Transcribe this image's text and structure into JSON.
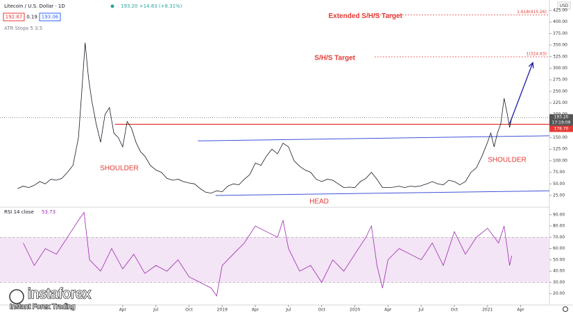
{
  "chart_data": [
    {
      "type": "line",
      "title": "Litecoin / U.S. Dollar · 1D",
      "quote": "193.20 +14.83 (+8.31%)",
      "ohlc_boxes": [
        "192.87",
        "0.19",
        "193.06"
      ],
      "indicator": "ATR Stops 5 3.5",
      "currency": "USD",
      "countdown": "17:19:09",
      "xlim": [
        -8.1,
        41.6
      ],
      "ylim": [
        1,
        447.5
      ],
      "yticks": [
        {
          "value": 25,
          "label": "25.00"
        },
        {
          "value": 50,
          "label": "50.00"
        },
        {
          "value": 75,
          "label": "75.00"
        },
        {
          "value": 100,
          "label": "100.00"
        },
        {
          "value": 125,
          "label": "125.00"
        },
        {
          "value": 150,
          "label": "150.00"
        },
        {
          "value": 175,
          "label": "175.00"
        },
        {
          "value": 200,
          "label": "200.00"
        },
        {
          "value": 225,
          "label": "225.00"
        },
        {
          "value": 250,
          "label": "250.00"
        },
        {
          "value": 275,
          "label": "275.00"
        },
        {
          "value": 300,
          "label": "300.00"
        },
        {
          "value": 325,
          "label": "325.00"
        },
        {
          "value": 350,
          "label": "350.00"
        },
        {
          "value": 375,
          "label": "375.00"
        },
        {
          "value": 400,
          "label": "400.00"
        },
        {
          "value": 425,
          "label": "425.00"
        }
      ],
      "x": [
        -6.5,
        -6,
        -5.5,
        -5,
        -4.5,
        -4,
        -3.5,
        -3,
        -2.5,
        -2,
        -1.5,
        -1,
        -0.7,
        -0.4,
        -0.1,
        0.2,
        0.6,
        1,
        1.4,
        1.8,
        2.2,
        2.6,
        3,
        3.4,
        3.8,
        4.2,
        4.6,
        5,
        5.5,
        6,
        6.5,
        7,
        7.5,
        8,
        8.5,
        9,
        9.5,
        10,
        10.5,
        11,
        11.5,
        12,
        12.5,
        13,
        13.5,
        14,
        14.5,
        15,
        15.5,
        16,
        16.5,
        17,
        17.5,
        18,
        18.5,
        19,
        19.5,
        20,
        20.5,
        21,
        21.5,
        22,
        22.5,
        23,
        23.5,
        24,
        24.5,
        25,
        25.5,
        26,
        26.5,
        27,
        27.5,
        28,
        28.5,
        29,
        29.5,
        30,
        30.5,
        31,
        31.5,
        32,
        32.5,
        33,
        33.5,
        34,
        34.5,
        35,
        35.5,
        36,
        36.3,
        36.6,
        36.9,
        37.2,
        37.5,
        37.8,
        38,
        38.2
      ],
      "series": [
        {
          "name": "Litecoin / U.S. Dollar",
          "color": "#131722",
          "values": [
            40,
            45,
            42,
            47,
            55,
            50,
            60,
            58,
            62,
            75,
            90,
            150,
            250,
            355,
            280,
            230,
            180,
            140,
            200,
            215,
            160,
            150,
            130,
            185,
            170,
            140,
            120,
            110,
            90,
            80,
            75,
            62,
            58,
            60,
            55,
            52,
            50,
            40,
            32,
            30,
            35,
            33,
            45,
            50,
            48,
            60,
            70,
            95,
            90,
            110,
            125,
            115,
            138,
            130,
            100,
            88,
            80,
            75,
            60,
            55,
            60,
            58,
            50,
            42,
            43,
            42,
            55,
            62,
            75,
            60,
            42,
            42,
            43,
            45,
            42,
            45,
            44,
            46,
            50,
            55,
            50,
            48,
            58,
            55,
            48,
            55,
            75,
            85,
            110,
            140,
            160,
            130,
            160,
            180,
            235,
            200,
            172,
            193.2
          ]
        }
      ],
      "price_lines": [
        {
          "value": 193.2,
          "label": "193.20",
          "color": "#555555"
        },
        {
          "value": 178.7,
          "label": "178.70",
          "color": "#e53935"
        }
      ],
      "targets": [
        {
          "name": "Extended S/H/S Target",
          "value": 415.26,
          "label": "1.618(415.26)"
        },
        {
          "name": "S/H/S Target",
          "value": 324.63,
          "label": "1(324.63)"
        }
      ],
      "trendlines": [
        {
          "x": [
            9.8,
            41.6
          ],
          "values": [
            143,
            154
          ]
        },
        {
          "x": [
            11.4,
            41.6
          ],
          "values": [
            25,
            35
          ]
        }
      ],
      "arrow": {
        "x": [
          38,
          40.1
        ],
        "values": [
          180,
          312
        ]
      },
      "annotations": [
        "SHOULDER",
        "SHOULDER",
        "HEAD"
      ]
    },
    {
      "type": "line",
      "title": "RSI 14 close",
      "last_label": "53.73",
      "xlim": [
        -8.1,
        41.6
      ],
      "ylim": [
        10,
        96
      ],
      "band": [
        30,
        70
      ],
      "yticks": [
        {
          "value": 20,
          "label": "20.00"
        },
        {
          "value": 30,
          "label": "30.00"
        },
        {
          "value": 40,
          "label": "40.00"
        },
        {
          "value": 50,
          "label": "50.00"
        },
        {
          "value": 60,
          "label": "60.00"
        },
        {
          "value": 70,
          "label": "70.00"
        },
        {
          "value": 80,
          "label": "80.00"
        },
        {
          "value": 90,
          "label": "90.00"
        }
      ],
      "xticks": [
        {
          "value": 3,
          "label": "Apr"
        },
        {
          "value": 6,
          "label": "Jul"
        },
        {
          "value": 9,
          "label": "Oct"
        },
        {
          "value": 12,
          "label": "2019"
        },
        {
          "value": 15,
          "label": "Apr"
        },
        {
          "value": 18,
          "label": "Jul"
        },
        {
          "value": 21,
          "label": "Oct"
        },
        {
          "value": 24,
          "label": "2020"
        },
        {
          "value": 27,
          "label": "Apr"
        },
        {
          "value": 30,
          "label": "Jul"
        },
        {
          "value": 33,
          "label": "Oct"
        },
        {
          "value": 36,
          "label": "2021"
        },
        {
          "value": 39,
          "label": "Apr"
        }
      ],
      "x": [
        -6,
        -5,
        -4,
        -3,
        -2,
        -1,
        -0.5,
        0,
        1,
        2,
        3,
        4,
        5,
        6,
        7,
        8,
        9,
        10,
        11,
        11.5,
        12,
        13,
        14,
        15,
        16,
        17,
        17.5,
        18,
        19,
        20,
        21,
        22,
        23,
        24,
        25,
        25.5,
        26,
        26.5,
        27,
        28,
        29,
        30,
        31,
        32,
        33,
        34,
        35,
        36,
        37,
        37.5,
        38,
        38.2
      ],
      "series": [
        {
          "name": "RSI 14 close",
          "color": "#9c27b0",
          "values": [
            65,
            45,
            60,
            55,
            70,
            85,
            92,
            50,
            40,
            60,
            42,
            55,
            38,
            45,
            40,
            50,
            35,
            30,
            25,
            18,
            45,
            55,
            65,
            80,
            75,
            70,
            85,
            60,
            40,
            45,
            30,
            50,
            40,
            55,
            70,
            80,
            45,
            25,
            50,
            60,
            55,
            50,
            65,
            45,
            75,
            55,
            70,
            78,
            65,
            80,
            45,
            53.73
          ]
        }
      ]
    }
  ],
  "branding": {
    "logo": "instaforex",
    "tagline": "Instant Forex Trading"
  }
}
